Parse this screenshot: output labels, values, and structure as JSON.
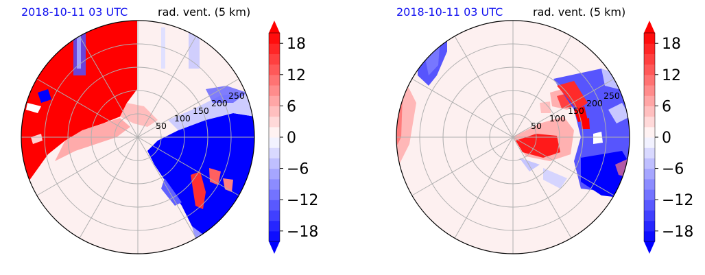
{
  "panels": [
    {
      "time_label": "2018-10-11 03 UTC",
      "var_label": "rad. vent. (5 km)"
    },
    {
      "time_label": "2018-10-11 03 UTC",
      "var_label": "rad. vent. (5 km)"
    }
  ],
  "chart_data": [
    {
      "type": "heatmap",
      "projection": "polar",
      "title": "",
      "time_label": "2018-10-11 03 UTC",
      "var_label": "rad. vent. (5 km)",
      "radial_ticks": [
        50,
        100,
        150,
        200,
        250
      ],
      "colorbar": {
        "ticks": [
          18,
          12,
          6,
          0,
          -6,
          -12,
          -18
        ],
        "range": [
          -20,
          20
        ],
        "extend": "both",
        "colormap": "bwr",
        "colors": {
          "min": "#0000ff",
          "mid": "#ffffff",
          "max": "#ff0000"
        }
      }
    },
    {
      "type": "heatmap",
      "projection": "polar",
      "title": "",
      "time_label": "2018-10-11 03 UTC",
      "var_label": "rad. vent. (5 km)",
      "radial_ticks": [
        50,
        100,
        150,
        200,
        250
      ],
      "colorbar": {
        "ticks": [
          18,
          12,
          6,
          0,
          -6,
          -12,
          -18
        ],
        "range": [
          -20,
          20
        ],
        "extend": "both",
        "colormap": "bwr",
        "colors": {
          "min": "#0000ff",
          "mid": "#ffffff",
          "max": "#ff0000"
        }
      }
    }
  ]
}
